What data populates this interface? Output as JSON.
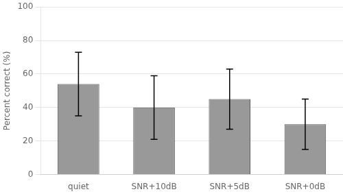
{
  "chart_data": {
    "type": "bar",
    "categories": [
      "quiet",
      "SNR+10dB",
      "SNR+5dB",
      "SNR+0dB"
    ],
    "values": [
      54,
      40,
      45,
      30
    ],
    "errors": [
      19,
      19,
      18,
      15
    ],
    "color": "#999999",
    "ylabel": "Percent correct (%)",
    "ylim": [
      0,
      100
    ],
    "yticks": [
      0,
      20,
      40,
      60,
      80,
      100
    ],
    "grid": true
  }
}
